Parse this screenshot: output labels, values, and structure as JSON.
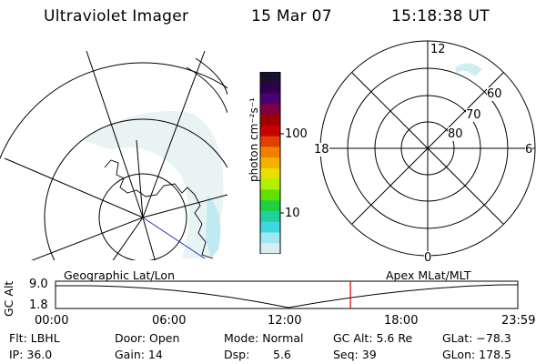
{
  "header": {
    "title": "Ultraviolet Imager",
    "date": "15 Mar 07",
    "time": "15:18:38 UT"
  },
  "colorbar": {
    "unit_label": "photon cm⁻²s⁻¹",
    "ticks": [
      "100",
      "10"
    ],
    "colors": [
      "#1a0f2e",
      "#300050",
      "#4b0070",
      "#800040",
      "#a00000",
      "#c80000",
      "#e04000",
      "#f08000",
      "#f5b000",
      "#e6e000",
      "#b0f000",
      "#60e000",
      "#20d040",
      "#20d0a0",
      "#40d8e0",
      "#a0e8ef",
      "#d8eeef"
    ]
  },
  "polar": {
    "mlt_labels": {
      "top": "12",
      "left": "18",
      "right": "6",
      "bottom": "0"
    },
    "lat_labels": [
      "60",
      "70",
      "80"
    ]
  },
  "timeline": {
    "left_title": "Geographic Lat/Lon",
    "right_title": "Apex MLat/MLT",
    "y_axis_label": "GC Alt",
    "y_ticks": [
      "9.0",
      "1.8"
    ],
    "x_ticks": [
      "00:00",
      "06:00",
      "12:00",
      "18:00",
      "23:59"
    ],
    "marker_color": "#cc0000",
    "marker_time_fraction": 0.638
  },
  "status": {
    "flt": "Flt: LBHL",
    "ip": "IP: 36.0",
    "door": "Door: Open",
    "gain": "Gain: 14",
    "mode": "Mode: Normal",
    "dsp_label": "Dsp:",
    "dsp_value": "5.6",
    "gc_alt": "GC Alt: 5.6 Re",
    "seq": "Seq: 39",
    "glat": "GLat: −78.3",
    "glon": "GLon: 178.5"
  }
}
